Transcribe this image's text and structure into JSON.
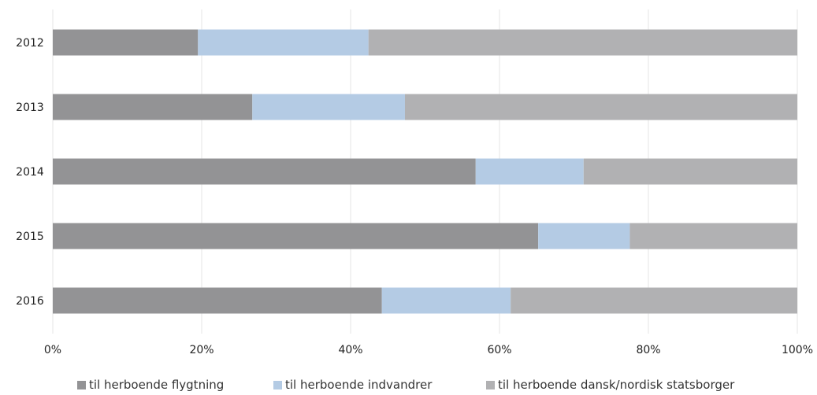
{
  "chart_data": {
    "type": "bar",
    "orientation": "horizontal",
    "stacked": true,
    "percent_stacked": true,
    "title": "",
    "xlabel": "",
    "ylabel": "",
    "xlim": [
      0,
      100
    ],
    "x_ticks": [
      "0%",
      "20%",
      "40%",
      "60%",
      "80%",
      "100%"
    ],
    "grid": "vertical",
    "legend_position": "bottom",
    "categories": [
      "2012",
      "2013",
      "2014",
      "2015",
      "2016"
    ],
    "series": [
      {
        "name": "til herboende flygtning",
        "color": "#939395",
        "values": [
          19.5,
          26.8,
          56.8,
          65.2,
          44.2
        ]
      },
      {
        "name": "til herboende indvandrer",
        "color": "#b4cbe4",
        "values": [
          22.9,
          20.5,
          14.5,
          12.3,
          17.3
        ]
      },
      {
        "name": "til herboende dansk/nordisk statsborger",
        "color": "#b1b1b3",
        "values": [
          57.6,
          52.7,
          28.7,
          22.5,
          38.5
        ]
      }
    ]
  }
}
